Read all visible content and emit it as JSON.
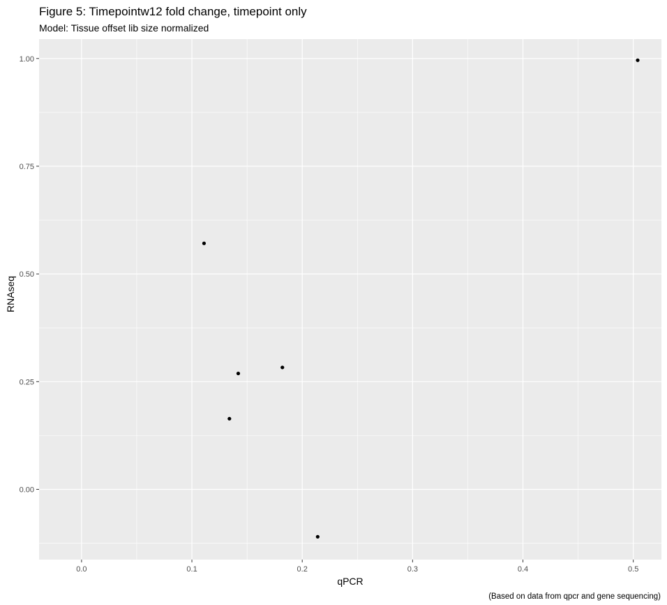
{
  "chart_data": {
    "type": "scatter",
    "title": "Figure 5: Timepointw12 fold change, timepoint only",
    "subtitle": "Model: Tissue offset lib size normalized",
    "caption": "(Based on data from qpcr and gene sequencing)",
    "xlabel": "qPCR",
    "ylabel": "RNAseq",
    "xlim": [
      -0.0385,
      0.5255
    ],
    "ylim": [
      -0.163,
      1.045
    ],
    "x_ticks": [
      0.0,
      0.1,
      0.2,
      0.3,
      0.4,
      0.5
    ],
    "x_tick_labels": [
      "0.0",
      "0.1",
      "0.2",
      "0.3",
      "0.4",
      "0.5"
    ],
    "y_ticks": [
      0.0,
      0.25,
      0.5,
      0.75,
      1.0
    ],
    "y_tick_labels": [
      "0.00",
      "0.25",
      "0.50",
      "0.75",
      "1.00"
    ],
    "grid": true,
    "background": "#ebebeb",
    "grid_color": "#ffffff",
    "point_color": "#000000",
    "points": [
      {
        "x": 0.111,
        "y": 0.571
      },
      {
        "x": 0.142,
        "y": 0.269
      },
      {
        "x": 0.134,
        "y": 0.164
      },
      {
        "x": 0.182,
        "y": 0.283
      },
      {
        "x": 0.214,
        "y": -0.11
      },
      {
        "x": 0.504,
        "y": 0.996
      }
    ]
  }
}
